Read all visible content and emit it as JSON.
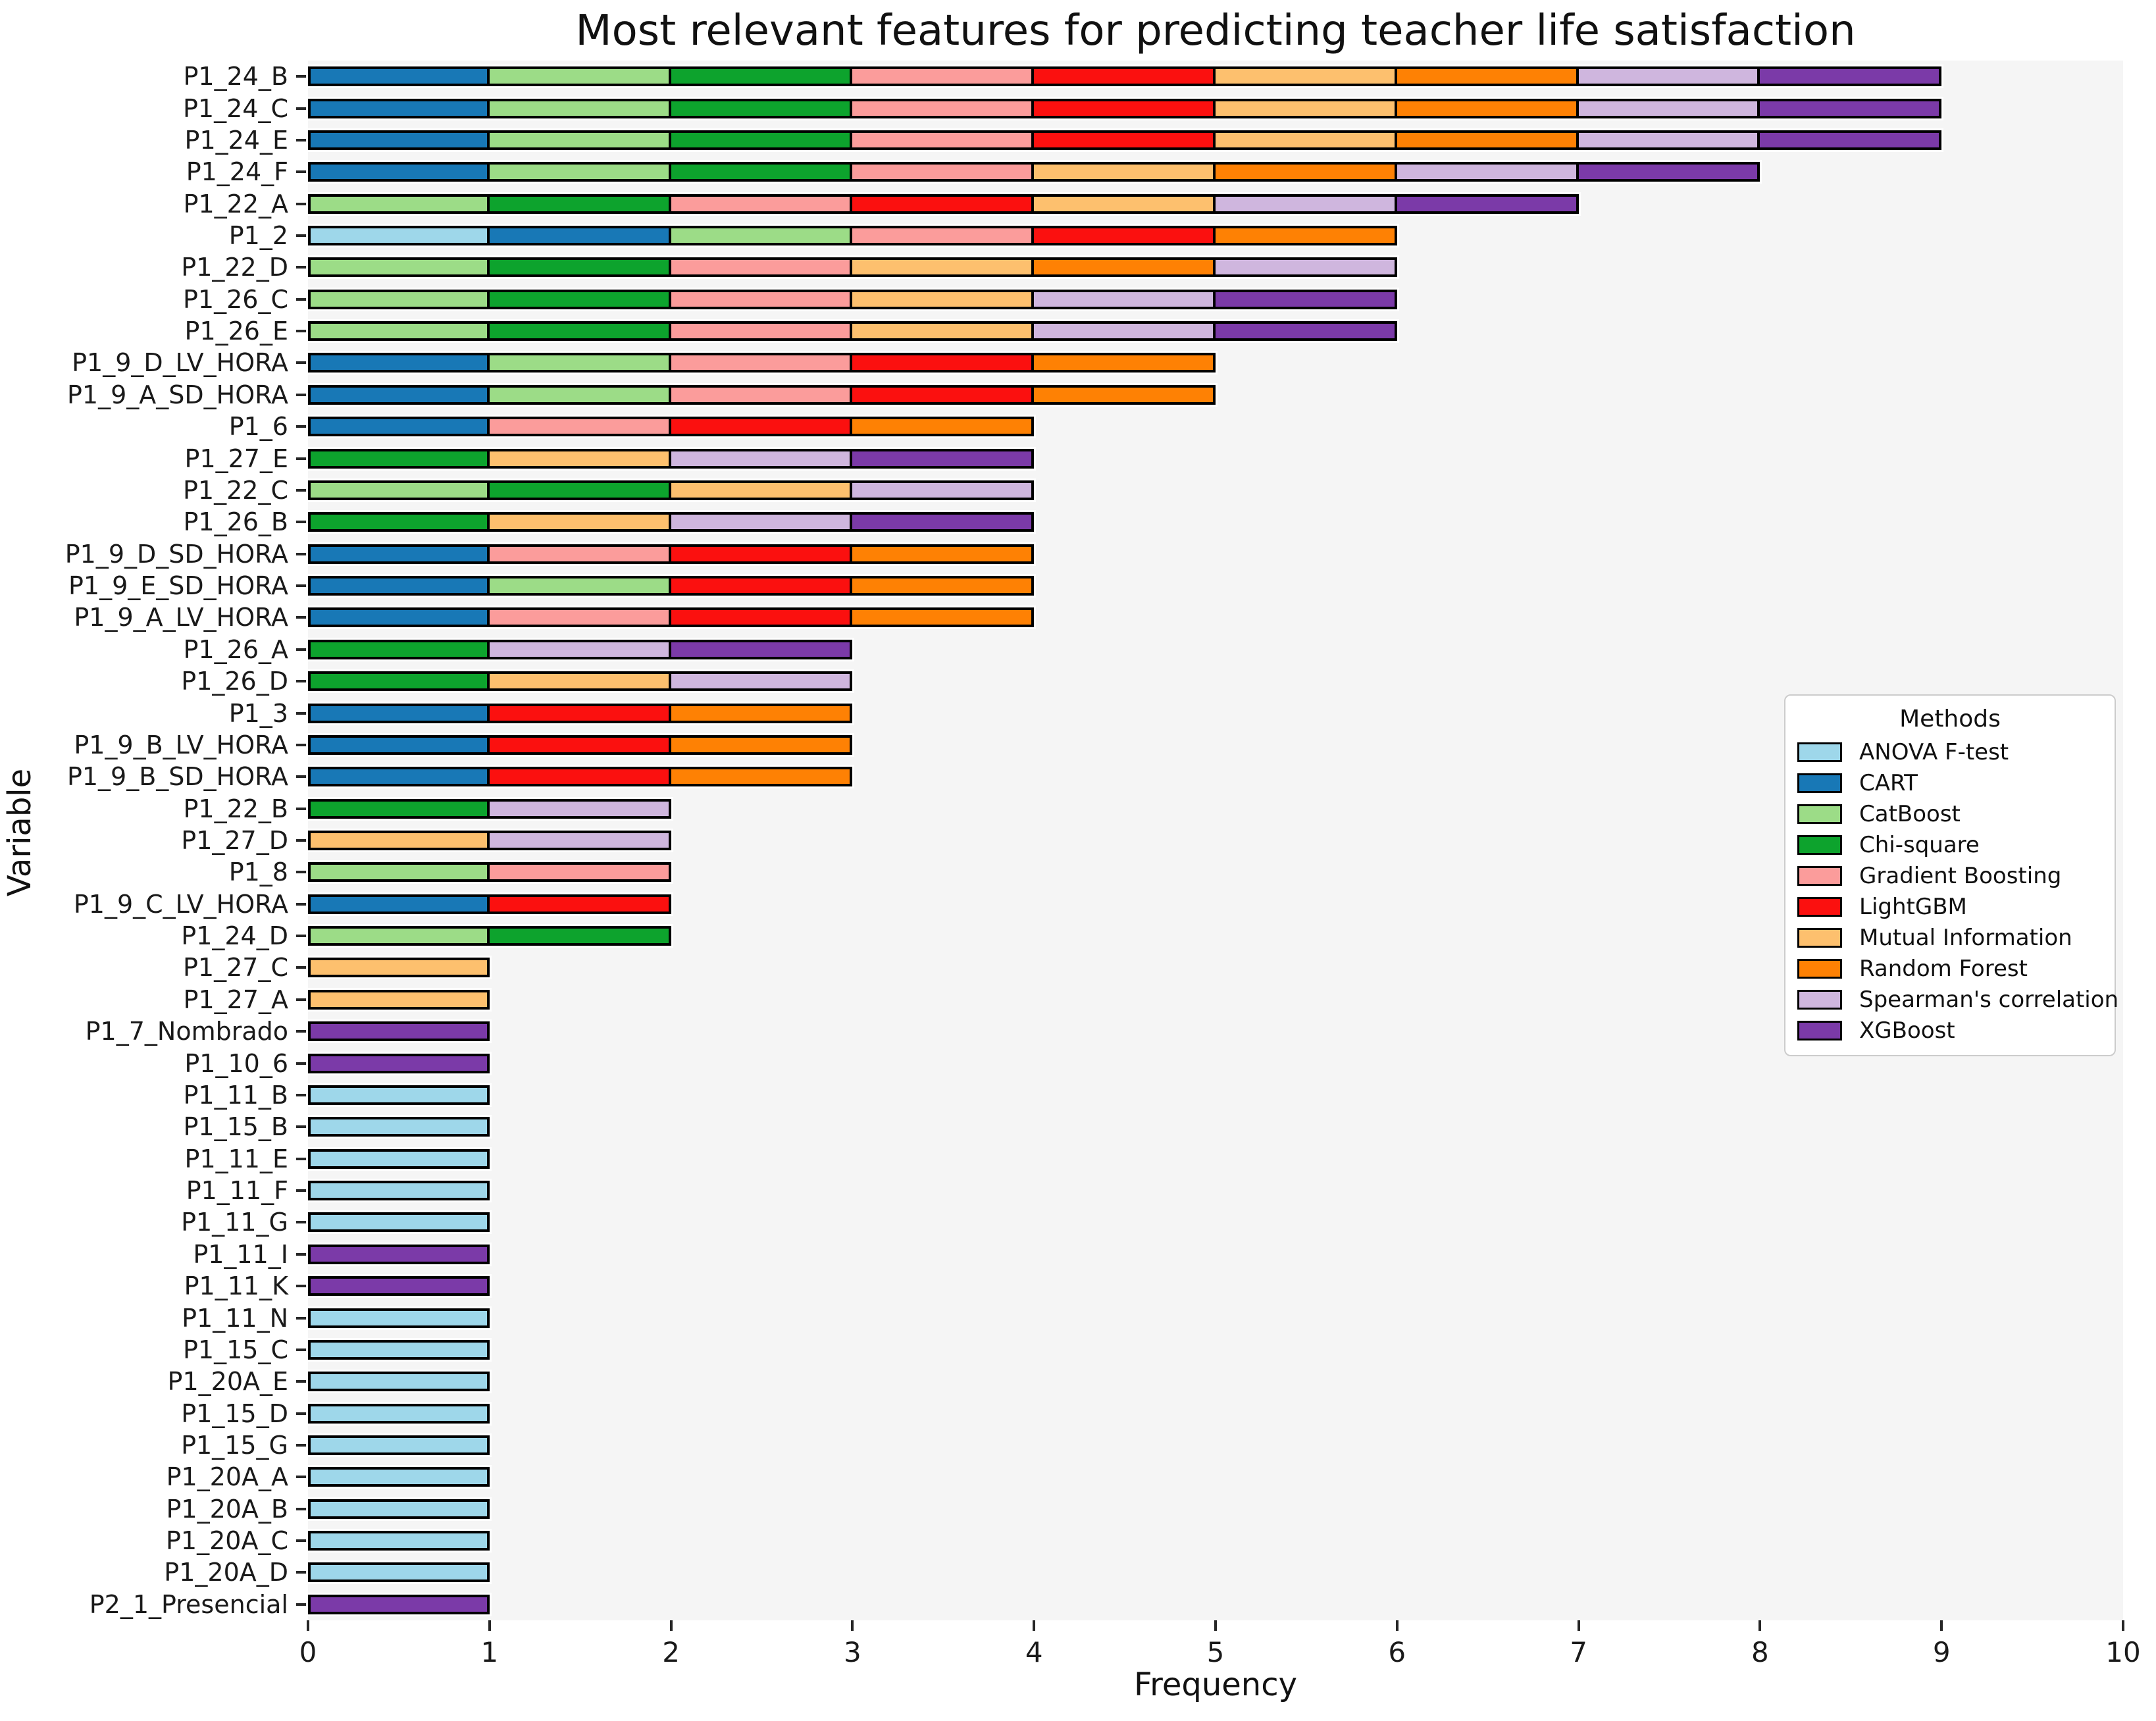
{
  "title": "Most relevant features for predicting teacher life satisfaction",
  "axes": {
    "x_label": "Frequency",
    "y_label": "Variable",
    "x_ticks": [
      "0",
      "1",
      "2",
      "3",
      "4",
      "5",
      "6",
      "7",
      "8",
      "9",
      "10"
    ]
  },
  "legend": {
    "title": "Methods",
    "items": [
      "ANOVA F-test",
      "CART",
      "CatBoost",
      "Chi-square",
      "Gradient Boosting",
      "LightGBM",
      "Mutual Information",
      "Random Forest",
      "Spearman's correlation",
      "XGBoost"
    ]
  },
  "chart_data": {
    "type": "bar",
    "orientation": "horizontal",
    "stacked": true,
    "xlim": [
      0,
      10
    ],
    "grid": false,
    "legend_position": "center-right",
    "plot_bg": "#f5f5f5",
    "bar_edge": "#000000",
    "segment_value": 1,
    "colors": {
      "ANOVA F-test": "#9ed7ea",
      "CART": "#1878b6",
      "CatBoost": "#9cdc87",
      "Chi-square": "#0da32d",
      "Gradient Boosting": "#fb9c9b",
      "LightGBM": "#fb100f",
      "Mutual Information": "#fdc06e",
      "Random Forest": "#fe8104",
      "Spearman's correlation": "#cfb6de",
      "XGBoost": "#7b3aa8"
    },
    "bars": [
      {
        "label": "P1_24_B",
        "total": 9,
        "segments": [
          "CART",
          "CatBoost",
          "Chi-square",
          "Gradient Boosting",
          "LightGBM",
          "Mutual Information",
          "Random Forest",
          "Spearman's correlation",
          "XGBoost"
        ]
      },
      {
        "label": "P1_24_C",
        "total": 9,
        "segments": [
          "CART",
          "CatBoost",
          "Chi-square",
          "Gradient Boosting",
          "LightGBM",
          "Mutual Information",
          "Random Forest",
          "Spearman's correlation",
          "XGBoost"
        ]
      },
      {
        "label": "P1_24_E",
        "total": 9,
        "segments": [
          "CART",
          "CatBoost",
          "Chi-square",
          "Gradient Boosting",
          "LightGBM",
          "Mutual Information",
          "Random Forest",
          "Spearman's correlation",
          "XGBoost"
        ]
      },
      {
        "label": "P1_24_F",
        "total": 8,
        "segments": [
          "CART",
          "CatBoost",
          "Chi-square",
          "Gradient Boosting",
          "Mutual Information",
          "Random Forest",
          "Spearman's correlation",
          "XGBoost"
        ]
      },
      {
        "label": "P1_22_A",
        "total": 7,
        "segments": [
          "CatBoost",
          "Chi-square",
          "Gradient Boosting",
          "LightGBM",
          "Mutual Information",
          "Spearman's correlation",
          "XGBoost"
        ]
      },
      {
        "label": "P1_2",
        "total": 6,
        "segments": [
          "ANOVA F-test",
          "CART",
          "CatBoost",
          "Gradient Boosting",
          "LightGBM",
          "Random Forest"
        ]
      },
      {
        "label": "P1_22_D",
        "total": 6,
        "segments": [
          "CatBoost",
          "Chi-square",
          "Gradient Boosting",
          "Mutual Information",
          "Random Forest",
          "Spearman's correlation"
        ]
      },
      {
        "label": "P1_26_C",
        "total": 6,
        "segments": [
          "CatBoost",
          "Chi-square",
          "Gradient Boosting",
          "Mutual Information",
          "Spearman's correlation",
          "XGBoost"
        ]
      },
      {
        "label": "P1_26_E",
        "total": 6,
        "segments": [
          "CatBoost",
          "Chi-square",
          "Gradient Boosting",
          "Mutual Information",
          "Spearman's correlation",
          "XGBoost"
        ]
      },
      {
        "label": "P1_9_D_LV_HORA",
        "total": 5,
        "segments": [
          "CART",
          "CatBoost",
          "Gradient Boosting",
          "LightGBM",
          "Random Forest"
        ]
      },
      {
        "label": "P1_9_A_SD_HORA",
        "total": 5,
        "segments": [
          "CART",
          "CatBoost",
          "Gradient Boosting",
          "LightGBM",
          "Random Forest"
        ]
      },
      {
        "label": "P1_6",
        "total": 4,
        "segments": [
          "CART",
          "Gradient Boosting",
          "LightGBM",
          "Random Forest"
        ]
      },
      {
        "label": "P1_27_E",
        "total": 4,
        "segments": [
          "Chi-square",
          "Mutual Information",
          "Spearman's correlation",
          "XGBoost"
        ]
      },
      {
        "label": "P1_22_C",
        "total": 4,
        "segments": [
          "CatBoost",
          "Chi-square",
          "Mutual Information",
          "Spearman's correlation"
        ]
      },
      {
        "label": "P1_26_B",
        "total": 4,
        "segments": [
          "Chi-square",
          "Mutual Information",
          "Spearman's correlation",
          "XGBoost"
        ]
      },
      {
        "label": "P1_9_D_SD_HORA",
        "total": 4,
        "segments": [
          "CART",
          "Gradient Boosting",
          "LightGBM",
          "Random Forest"
        ]
      },
      {
        "label": "P1_9_E_SD_HORA",
        "total": 4,
        "segments": [
          "CART",
          "CatBoost",
          "LightGBM",
          "Random Forest"
        ]
      },
      {
        "label": "P1_9_A_LV_HORA",
        "total": 4,
        "segments": [
          "CART",
          "Gradient Boosting",
          "LightGBM",
          "Random Forest"
        ]
      },
      {
        "label": "P1_26_A",
        "total": 3,
        "segments": [
          "Chi-square",
          "Spearman's correlation",
          "XGBoost"
        ]
      },
      {
        "label": "P1_26_D",
        "total": 3,
        "segments": [
          "Chi-square",
          "Mutual Information",
          "Spearman's correlation"
        ]
      },
      {
        "label": "P1_3",
        "total": 3,
        "segments": [
          "CART",
          "LightGBM",
          "Random Forest"
        ]
      },
      {
        "label": "P1_9_B_LV_HORA",
        "total": 3,
        "segments": [
          "CART",
          "LightGBM",
          "Random Forest"
        ]
      },
      {
        "label": "P1_9_B_SD_HORA",
        "total": 3,
        "segments": [
          "CART",
          "LightGBM",
          "Random Forest"
        ]
      },
      {
        "label": "P1_22_B",
        "total": 2,
        "segments": [
          "Chi-square",
          "Spearman's correlation"
        ]
      },
      {
        "label": "P1_27_D",
        "total": 2,
        "segments": [
          "Mutual Information",
          "Spearman's correlation"
        ]
      },
      {
        "label": "P1_8",
        "total": 2,
        "segments": [
          "CatBoost",
          "Gradient Boosting"
        ]
      },
      {
        "label": "P1_9_C_LV_HORA",
        "total": 2,
        "segments": [
          "CART",
          "LightGBM"
        ]
      },
      {
        "label": "P1_24_D",
        "total": 2,
        "segments": [
          "CatBoost",
          "Chi-square"
        ]
      },
      {
        "label": "P1_27_C",
        "total": 1,
        "segments": [
          "Mutual Information"
        ]
      },
      {
        "label": "P1_27_A",
        "total": 1,
        "segments": [
          "Mutual Information"
        ]
      },
      {
        "label": "P1_7_Nombrado",
        "total": 1,
        "segments": [
          "XGBoost"
        ]
      },
      {
        "label": "P1_10_6",
        "total": 1,
        "segments": [
          "XGBoost"
        ]
      },
      {
        "label": "P1_11_B",
        "total": 1,
        "segments": [
          "ANOVA F-test"
        ]
      },
      {
        "label": "P1_15_B",
        "total": 1,
        "segments": [
          "ANOVA F-test"
        ]
      },
      {
        "label": "P1_11_E",
        "total": 1,
        "segments": [
          "ANOVA F-test"
        ]
      },
      {
        "label": "P1_11_F",
        "total": 1,
        "segments": [
          "ANOVA F-test"
        ]
      },
      {
        "label": "P1_11_G",
        "total": 1,
        "segments": [
          "ANOVA F-test"
        ]
      },
      {
        "label": "P1_11_I",
        "total": 1,
        "segments": [
          "XGBoost"
        ]
      },
      {
        "label": "P1_11_K",
        "total": 1,
        "segments": [
          "XGBoost"
        ]
      },
      {
        "label": "P1_11_N",
        "total": 1,
        "segments": [
          "ANOVA F-test"
        ]
      },
      {
        "label": "P1_15_C",
        "total": 1,
        "segments": [
          "ANOVA F-test"
        ]
      },
      {
        "label": "P1_20A_E",
        "total": 1,
        "segments": [
          "ANOVA F-test"
        ]
      },
      {
        "label": "P1_15_D",
        "total": 1,
        "segments": [
          "ANOVA F-test"
        ]
      },
      {
        "label": "P1_15_G",
        "total": 1,
        "segments": [
          "ANOVA F-test"
        ]
      },
      {
        "label": "P1_20A_A",
        "total": 1,
        "segments": [
          "ANOVA F-test"
        ]
      },
      {
        "label": "P1_20A_B",
        "total": 1,
        "segments": [
          "ANOVA F-test"
        ]
      },
      {
        "label": "P1_20A_C",
        "total": 1,
        "segments": [
          "ANOVA F-test"
        ]
      },
      {
        "label": "P1_20A_D",
        "total": 1,
        "segments": [
          "ANOVA F-test"
        ]
      },
      {
        "label": "P2_1_Presencial",
        "total": 1,
        "segments": [
          "XGBoost"
        ]
      }
    ]
  }
}
